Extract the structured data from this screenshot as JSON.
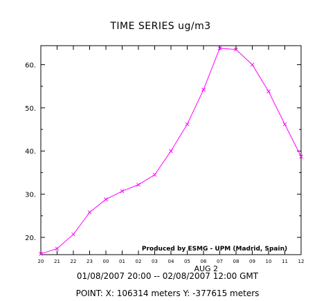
{
  "chart_data": {
    "type": "line",
    "title": "TIME SERIES ug/m3",
    "x": [
      "20",
      "21",
      "22",
      "23",
      "00",
      "01",
      "02",
      "03",
      "04",
      "05",
      "06",
      "07",
      "08",
      "09",
      "10",
      "11",
      "12"
    ],
    "series": [
      {
        "values": [
          16.2,
          17.4,
          20.7,
          25.8,
          28.8,
          30.7,
          32.2,
          34.5,
          40.0,
          46.2,
          54.2,
          63.8,
          63.5,
          60.0,
          53.8,
          46.2,
          38.7
        ]
      }
    ],
    "y_ticks": [
      "20.",
      "30.",
      "40.",
      "50.",
      "60."
    ],
    "ylim": [
      16,
      64.4
    ],
    "date_label": "AUG 2",
    "date_label_after": "06",
    "grid": false,
    "line_color": "#ff00ff",
    "marker": "x",
    "annotation": "Produced by ESMG - UPM (Madrid, Spain)"
  },
  "footer": {
    "time_range": "01/08/2007 20:00  -- 02/08/2007 12:00 GMT",
    "point": "POINT: X: 106314 meters Y: -377615 meters"
  }
}
